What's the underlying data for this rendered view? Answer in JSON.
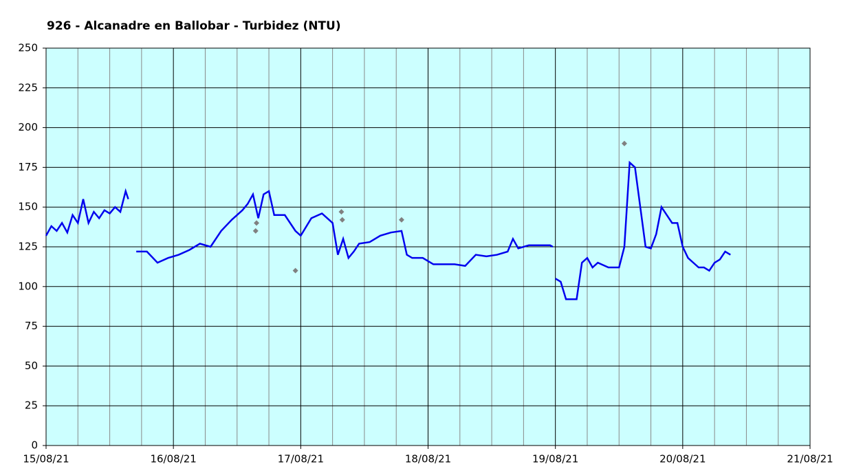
{
  "chart_data": {
    "type": "line",
    "title": "926 - Alcanadre en Ballobar - Turbidez (NTU)",
    "ylim": [
      0,
      250
    ],
    "yticks": [
      0,
      25,
      50,
      75,
      100,
      125,
      150,
      175,
      200,
      225,
      250
    ],
    "xlim": [
      "2021-08-15T00:00",
      "2021-08-21T00:00"
    ],
    "xticks": [
      {
        "value": "2021-08-15T00:00",
        "label": "15/08/21"
      },
      {
        "value": "2021-08-16T00:00",
        "label": "16/08/21"
      },
      {
        "value": "2021-08-17T00:00",
        "label": "17/08/21"
      },
      {
        "value": "2021-08-18T00:00",
        "label": "18/08/21"
      },
      {
        "value": "2021-08-19T00:00",
        "label": "19/08/21"
      },
      {
        "value": "2021-08-20T00:00",
        "label": "20/08/21"
      },
      {
        "value": "2021-08-21T00:00",
        "label": "21/08/21"
      }
    ],
    "xminor_ticks": [
      "2021-08-15T06:00",
      "2021-08-15T12:00",
      "2021-08-15T18:00",
      "2021-08-16T06:00",
      "2021-08-16T12:00",
      "2021-08-16T18:00",
      "2021-08-17T06:00",
      "2021-08-17T12:00",
      "2021-08-17T18:00",
      "2021-08-18T06:00",
      "2021-08-18T12:00",
      "2021-08-18T18:00",
      "2021-08-19T06:00",
      "2021-08-19T12:00",
      "2021-08-19T18:00",
      "2021-08-20T06:00",
      "2021-08-20T12:00",
      "2021-08-20T18:00"
    ],
    "grid": true,
    "background": "#ccffff",
    "series": [
      {
        "type": "line",
        "color": "#0000ee",
        "x": [
          "2021-08-15T00:00",
          "2021-08-15T01:00",
          "2021-08-15T02:00",
          "2021-08-15T03:00",
          "2021-08-15T04:00",
          "2021-08-15T05:00",
          "2021-08-15T06:00",
          "2021-08-15T07:00",
          "2021-08-15T08:00",
          "2021-08-15T09:00",
          "2021-08-15T10:00",
          "2021-08-15T11:00",
          "2021-08-15T12:00",
          "2021-08-15T13:00",
          "2021-08-15T14:00",
          "2021-08-15T15:00",
          "2021-08-15T15:30",
          "2021-08-15T16:00",
          "2021-08-15T17:00",
          "2021-08-15T19:00",
          "2021-08-15T21:00",
          "2021-08-15T23:00",
          "2021-08-16T01:00",
          "2021-08-16T03:00",
          "2021-08-16T05:00",
          "2021-08-16T07:00",
          "2021-08-16T09:00",
          "2021-08-16T11:00",
          "2021-08-16T13:00",
          "2021-08-16T14:00",
          "2021-08-16T15:00",
          "2021-08-16T16:00",
          "2021-08-16T17:00",
          "2021-08-16T18:00",
          "2021-08-16T19:00",
          "2021-08-16T21:00",
          "2021-08-16T23:00",
          "2021-08-17T00:00",
          "2021-08-17T02:00",
          "2021-08-17T04:00",
          "2021-08-17T06:00",
          "2021-08-17T07:00",
          "2021-08-17T08:00",
          "2021-08-17T09:00",
          "2021-08-17T10:00",
          "2021-08-17T11:00",
          "2021-08-17T13:00",
          "2021-08-17T15:00",
          "2021-08-17T17:00",
          "2021-08-17T19:00",
          "2021-08-17T20:00",
          "2021-08-17T21:00",
          "2021-08-17T23:00",
          "2021-08-18T01:00",
          "2021-08-18T03:00",
          "2021-08-18T05:00",
          "2021-08-18T07:00",
          "2021-08-18T09:00",
          "2021-08-18T11:00",
          "2021-08-18T13:00",
          "2021-08-18T15:00",
          "2021-08-18T16:00",
          "2021-08-18T17:00",
          "2021-08-18T19:00",
          "2021-08-18T21:00",
          "2021-08-18T23:00",
          "2021-08-18T23:30",
          "2021-08-18T23:45",
          "2021-08-19T00:00",
          "2021-08-19T01:00",
          "2021-08-19T02:00",
          "2021-08-19T04:00",
          "2021-08-19T05:00",
          "2021-08-19T06:00",
          "2021-08-19T07:00",
          "2021-08-19T08:00",
          "2021-08-19T10:00",
          "2021-08-19T12:00",
          "2021-08-19T13:00",
          "2021-08-19T14:00",
          "2021-08-19T15:00",
          "2021-08-19T16:00",
          "2021-08-19T17:00",
          "2021-08-19T18:00",
          "2021-08-19T19:00",
          "2021-08-19T20:00",
          "2021-08-19T21:00",
          "2021-08-19T22:00",
          "2021-08-19T23:00",
          "2021-08-20T00:00",
          "2021-08-20T01:00",
          "2021-08-20T02:00",
          "2021-08-20T03:00",
          "2021-08-20T04:00",
          "2021-08-20T05:00",
          "2021-08-20T06:00",
          "2021-08-20T07:00",
          "2021-08-20T08:00",
          "2021-08-20T09:00"
        ],
        "values": [
          132,
          138,
          135,
          140,
          134,
          145,
          140,
          155,
          140,
          147,
          143,
          148,
          146,
          150,
          147,
          160,
          155,
          null,
          122,
          122,
          115,
          118,
          120,
          123,
          127,
          125,
          135,
          142,
          148,
          152,
          158,
          143,
          158,
          160,
          145,
          145,
          135,
          132,
          143,
          146,
          140,
          120,
          130,
          118,
          122,
          127,
          128,
          132,
          134,
          135,
          120,
          118,
          118,
          114,
          114,
          114,
          113,
          120,
          119,
          120,
          122,
          130,
          124,
          126,
          126,
          126,
          125,
          null,
          105,
          103,
          92,
          92,
          115,
          118,
          112,
          115,
          112,
          112,
          125,
          178,
          175,
          150,
          125,
          124,
          133,
          150,
          145,
          140,
          140,
          125,
          118,
          115,
          112,
          112,
          110,
          115,
          117,
          122,
          120
        ]
      },
      {
        "type": "scatter",
        "color": "#808080",
        "x": [
          "2021-08-16T15:30",
          "2021-08-16T15:40",
          "2021-08-16T23:00",
          "2021-08-17T07:40",
          "2021-08-17T07:50",
          "2021-08-17T19:00",
          "2021-08-19T13:00"
        ],
        "values": [
          135,
          140,
          110,
          147,
          142,
          142,
          190
        ]
      }
    ]
  }
}
